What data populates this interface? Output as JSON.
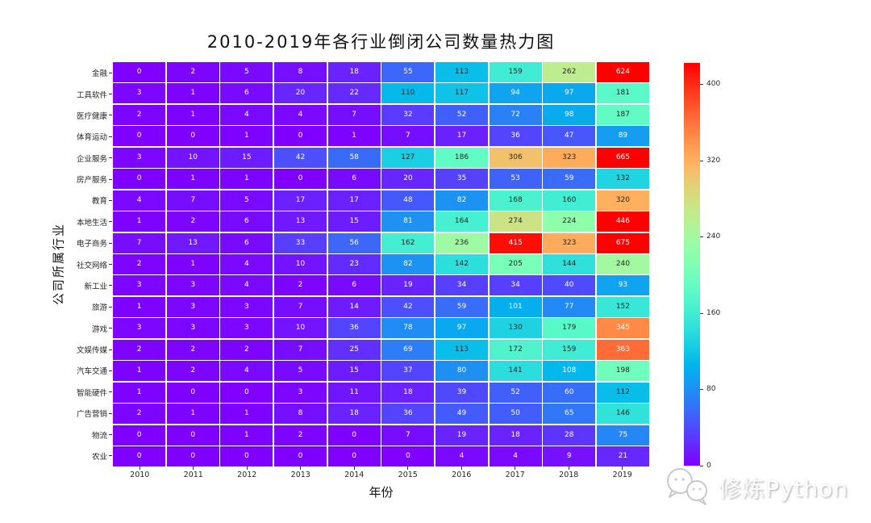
{
  "title": "2010-2019年各行业倒闭公司数量热力图",
  "watermark": {
    "text": "修炼Python",
    "icon": "wechat-chat-bubbles-icon"
  },
  "chart_data": {
    "type": "heatmap",
    "title": "2010-2019年各行业倒闭公司数量热力图",
    "xlabel": "年份",
    "ylabel": "公司所属行业",
    "columns": [
      "2010",
      "2011",
      "2012",
      "2013",
      "2014",
      "2015",
      "2016",
      "2017",
      "2018",
      "2019"
    ],
    "rows": [
      "金融",
      "工具软件",
      "医疗健康",
      "体育运动",
      "企业服务",
      "房产服务",
      "教育",
      "本地生活",
      "电子商务",
      "社交网络",
      "新工业",
      "旅游",
      "游戏",
      "文娱传媒",
      "汽车交通",
      "智能硬件",
      "广告营销",
      "物流",
      "农业"
    ],
    "values": [
      [
        0,
        2,
        5,
        8,
        18,
        55,
        113,
        159,
        262,
        624
      ],
      [
        3,
        1,
        6,
        20,
        22,
        110,
        117,
        94,
        97,
        181
      ],
      [
        2,
        1,
        4,
        4,
        7,
        32,
        52,
        72,
        98,
        187
      ],
      [
        0,
        0,
        1,
        0,
        1,
        7,
        17,
        36,
        47,
        89
      ],
      [
        3,
        10,
        15,
        42,
        58,
        127,
        186,
        306,
        323,
        665
      ],
      [
        0,
        1,
        1,
        0,
        6,
        20,
        35,
        53,
        59,
        132
      ],
      [
        4,
        7,
        5,
        17,
        17,
        48,
        82,
        168,
        160,
        320
      ],
      [
        1,
        2,
        6,
        13,
        15,
        81,
        164,
        274,
        224,
        446
      ],
      [
        7,
        13,
        6,
        33,
        56,
        162,
        236,
        415,
        323,
        675
      ],
      [
        2,
        1,
        4,
        10,
        23,
        82,
        142,
        205,
        144,
        240
      ],
      [
        3,
        3,
        4,
        2,
        6,
        19,
        34,
        34,
        40,
        93
      ],
      [
        1,
        3,
        3,
        7,
        14,
        42,
        59,
        101,
        77,
        152
      ],
      [
        3,
        3,
        3,
        10,
        36,
        78,
        97,
        130,
        179,
        345
      ],
      [
        2,
        2,
        2,
        7,
        25,
        69,
        113,
        172,
        159,
        363
      ],
      [
        1,
        2,
        4,
        5,
        15,
        37,
        80,
        141,
        108,
        198
      ],
      [
        1,
        0,
        0,
        3,
        11,
        18,
        39,
        52,
        60,
        112
      ],
      [
        2,
        1,
        1,
        8,
        18,
        36,
        49,
        50,
        65,
        146
      ],
      [
        0,
        0,
        1,
        2,
        0,
        7,
        19,
        18,
        28,
        75
      ],
      [
        0,
        0,
        0,
        0,
        0,
        0,
        4,
        4,
        9,
        21
      ]
    ],
    "annotated": true,
    "colormap": "rainbow",
    "vmin": 0,
    "vmax": 422,
    "colorbar_ticks": [
      0,
      80,
      160,
      240,
      320,
      400
    ],
    "legend_position": "right-colorbar",
    "grid": false,
    "background": "#ffffff",
    "colors": {
      "value_min_color": "#8000FF",
      "value_max_color": "#FF0000",
      "annot_dark": "#262626",
      "annot_light": "#ffffff"
    }
  }
}
